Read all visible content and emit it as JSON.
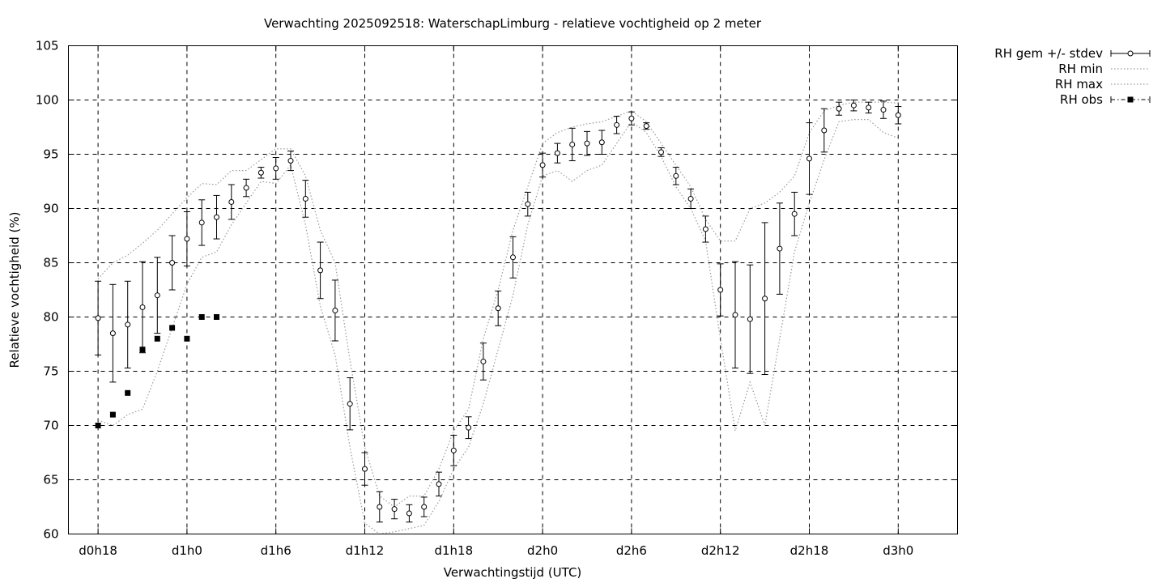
{
  "chart_data": {
    "type": "scatter",
    "title": "Verwachting 2025092518: WaterschapLimburg - relatieve vochtigheid op 2 meter",
    "xlabel": "Verwachtingstijd (UTC)",
    "ylabel": "Relatieve vochtigheid (%)",
    "x_unit": "uur vanaf d0h0",
    "xlim": [
      16,
      76
    ],
    "ylim": [
      60,
      105
    ],
    "yticks": [
      60,
      65,
      70,
      75,
      80,
      85,
      90,
      95,
      100,
      105
    ],
    "xticks": [
      {
        "x": 18,
        "label": "d0h18"
      },
      {
        "x": 24,
        "label": "d1h0"
      },
      {
        "x": 30,
        "label": "d1h6"
      },
      {
        "x": 36,
        "label": "d1h12"
      },
      {
        "x": 42,
        "label": "d1h18"
      },
      {
        "x": 48,
        "label": "d2h0"
      },
      {
        "x": 54,
        "label": "d2h6"
      },
      {
        "x": 60,
        "label": "d2h12"
      },
      {
        "x": 66,
        "label": "d2h18"
      },
      {
        "x": 72,
        "label": "d3h0"
      }
    ],
    "grid": true,
    "legend_position": "outside-top-right",
    "legend": [
      "RH gem +/- stdev",
      "RH min",
      "RH max",
      "RH obs"
    ],
    "series": [
      {
        "name": "RH gem +/- stdev",
        "style": "errorbar",
        "x": [
          18,
          19,
          20,
          21,
          22,
          23,
          24,
          25,
          26,
          27,
          28,
          29,
          30,
          31,
          32,
          33,
          34,
          35,
          36,
          37,
          38,
          39,
          40,
          41,
          42,
          43,
          44,
          45,
          46,
          47,
          48,
          49,
          50,
          51,
          52,
          53,
          54,
          55,
          56,
          57,
          58,
          59,
          60,
          61,
          62,
          63,
          64,
          65,
          66,
          67,
          68,
          69,
          70,
          71,
          72
        ],
        "y": [
          79.9,
          78.5,
          79.3,
          80.9,
          82.0,
          85.0,
          87.2,
          88.7,
          89.2,
          90.6,
          91.9,
          93.3,
          93.7,
          94.4,
          90.9,
          84.3,
          80.6,
          72.0,
          66.0,
          62.5,
          62.3,
          61.9,
          62.5,
          64.6,
          67.7,
          69.8,
          75.9,
          80.8,
          85.5,
          90.4,
          94.0,
          95.1,
          95.9,
          96.0,
          96.1,
          97.7,
          98.3,
          97.6,
          95.2,
          93.0,
          90.9,
          88.1,
          82.5,
          80.2,
          79.8,
          81.7,
          86.3,
          89.5,
          94.6,
          97.2,
          99.2,
          99.5,
          99.3,
          99.1,
          98.6
        ],
        "stdev": [
          3.4,
          4.5,
          4.0,
          4.2,
          3.5,
          2.5,
          2.5,
          2.1,
          2.0,
          1.6,
          0.8,
          0.5,
          1.0,
          0.9,
          1.7,
          2.6,
          2.8,
          2.4,
          1.5,
          1.4,
          0.9,
          0.8,
          0.9,
          1.1,
          1.4,
          1.0,
          1.7,
          1.6,
          1.9,
          1.1,
          1.1,
          0.9,
          1.5,
          1.1,
          1.1,
          0.8,
          0.6,
          0.3,
          0.4,
          0.8,
          0.9,
          1.2,
          2.4,
          4.9,
          5.0,
          7.0,
          4.2,
          2.0,
          3.3,
          2.0,
          0.6,
          0.5,
          0.5,
          0.8,
          0.8
        ]
      },
      {
        "name": "RH min",
        "style": "dotted",
        "x": [
          18,
          19,
          20,
          21,
          22,
          23,
          24,
          25,
          26,
          27,
          28,
          29,
          30,
          31,
          32,
          33,
          34,
          35,
          36,
          37,
          38,
          39,
          40,
          41,
          42,
          43,
          44,
          45,
          46,
          47,
          48,
          49,
          50,
          51,
          52,
          53,
          54,
          55,
          56,
          57,
          58,
          59,
          60,
          61,
          62,
          63,
          64,
          65,
          66,
          67,
          68,
          69,
          70,
          71,
          72
        ],
        "y": [
          70.5,
          70.0,
          71.0,
          71.5,
          75.0,
          79.0,
          83.0,
          85.5,
          86.0,
          88.5,
          90.5,
          92.5,
          92.3,
          94.0,
          88.5,
          81.0,
          76.5,
          68.0,
          61.0,
          60.0,
          60.2,
          60.5,
          60.8,
          63.0,
          66.0,
          68.0,
          72.0,
          77.0,
          82.0,
          88.5,
          93.0,
          93.5,
          92.5,
          93.5,
          94.0,
          96.0,
          98.0,
          97.0,
          94.8,
          92.0,
          90.0,
          87.0,
          78.0,
          69.5,
          74.0,
          70.0,
          78.0,
          86.0,
          90.5,
          94.5,
          98.0,
          98.2,
          98.2,
          97.0,
          96.5
        ]
      },
      {
        "name": "RH max",
        "style": "dotted",
        "x": [
          18,
          19,
          20,
          21,
          22,
          23,
          24,
          25,
          26,
          27,
          28,
          29,
          30,
          31,
          32,
          33,
          34,
          35,
          36,
          37,
          38,
          39,
          40,
          41,
          42,
          43,
          44,
          45,
          46,
          47,
          48,
          49,
          50,
          51,
          52,
          53,
          54,
          55,
          56,
          57,
          58,
          59,
          60,
          61,
          62,
          63,
          64,
          65,
          66,
          67,
          68,
          69,
          70,
          71,
          72
        ],
        "y": [
          83.5,
          85.0,
          85.7,
          86.8,
          88.0,
          89.5,
          91.0,
          92.3,
          92.2,
          93.5,
          93.5,
          94.5,
          95.5,
          95.5,
          93.0,
          88.0,
          85.0,
          76.0,
          68.0,
          63.5,
          62.5,
          63.5,
          63.5,
          66.0,
          69.5,
          71.5,
          78.0,
          82.5,
          88.0,
          92.0,
          96.0,
          97.0,
          97.5,
          97.8,
          98.0,
          98.5,
          99.0,
          98.0,
          96.0,
          94.0,
          92.0,
          89.0,
          87.0,
          87.0,
          90.0,
          90.5,
          91.5,
          93.0,
          97.0,
          99.0,
          99.5,
          99.8,
          99.8,
          99.8,
          99.7
        ]
      },
      {
        "name": "RH obs",
        "style": "points",
        "x": [
          18,
          19,
          20,
          21,
          22,
          23,
          24,
          25,
          26
        ],
        "y": [
          70,
          71,
          73,
          77,
          78,
          79,
          78,
          80,
          80
        ]
      }
    ]
  }
}
